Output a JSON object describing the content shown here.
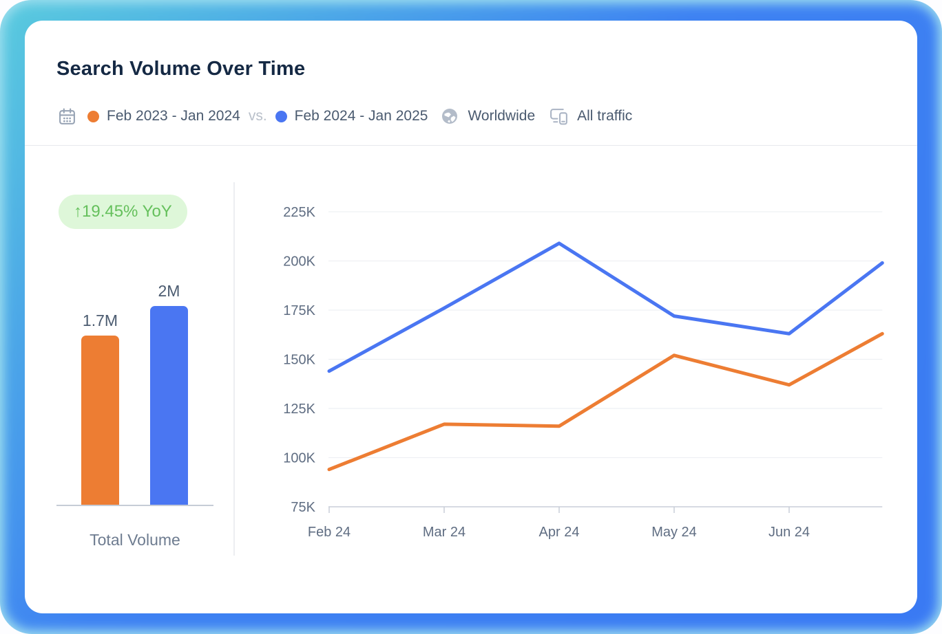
{
  "header": {
    "title": "Search Volume Over Time",
    "period_previous": "Feb 2023 - Jan 2024",
    "vs_label": "vs.",
    "period_current": "Feb 2024 - Jan 2025",
    "region": "Worldwide",
    "traffic_type": "All traffic",
    "icons": [
      "calendar-icon",
      "globe-icon",
      "devices-icon"
    ]
  },
  "summary": {
    "yoy_badge": "↑19.45% YoY",
    "total_label": "Total Volume"
  },
  "colors": {
    "previous_period": "#ED7D33",
    "current_period": "#4A76F2",
    "badge_bg": "#DEF7D9",
    "badge_text": "#65C05C",
    "title_text": "#152944",
    "axis_text": "#5F6D82"
  },
  "chart_data": [
    {
      "type": "bar",
      "xlabel": "Total Volume",
      "categories": [
        "Feb 2023 - Jan 2024",
        "Feb 2024 - Jan 2025"
      ],
      "values": [
        1700000,
        2000000
      ],
      "value_labels": [
        "1.7M",
        "2M"
      ],
      "colors": [
        "#ED7D33",
        "#4A76F2"
      ]
    },
    {
      "type": "line",
      "title": "",
      "categories": [
        "Feb 24",
        "Mar 24",
        "Apr 24",
        "May 24",
        "Jun 24"
      ],
      "ylim": [
        75000,
        225000
      ],
      "y_ticks": [
        {
          "v": 225000,
          "label": "225K"
        },
        {
          "v": 200000,
          "label": "200K"
        },
        {
          "v": 175000,
          "label": "175K"
        },
        {
          "v": 150000,
          "label": "150K"
        },
        {
          "v": 125000,
          "label": "125K"
        },
        {
          "v": 100000,
          "label": "100K"
        },
        {
          "v": 75000,
          "label": "75K"
        }
      ],
      "grid": "horizontal",
      "legend": "none",
      "edge_x_fraction": 0.81,
      "clipped_note": "both lines continue past Jun 24 and are clipped at the right card edge; edge_value is the value visible at the clip point",
      "series": [
        {
          "name": "Feb 2023 - Jan 2024",
          "color": "#ED7D33",
          "values": [
            94000,
            117000,
            116000,
            152000,
            137000
          ],
          "edge_value": 163000
        },
        {
          "name": "Feb 2024 - Jan 2025",
          "color": "#4A76F2",
          "values": [
            144000,
            176000,
            209000,
            172000,
            163000
          ],
          "edge_value": 199000
        }
      ]
    }
  ]
}
